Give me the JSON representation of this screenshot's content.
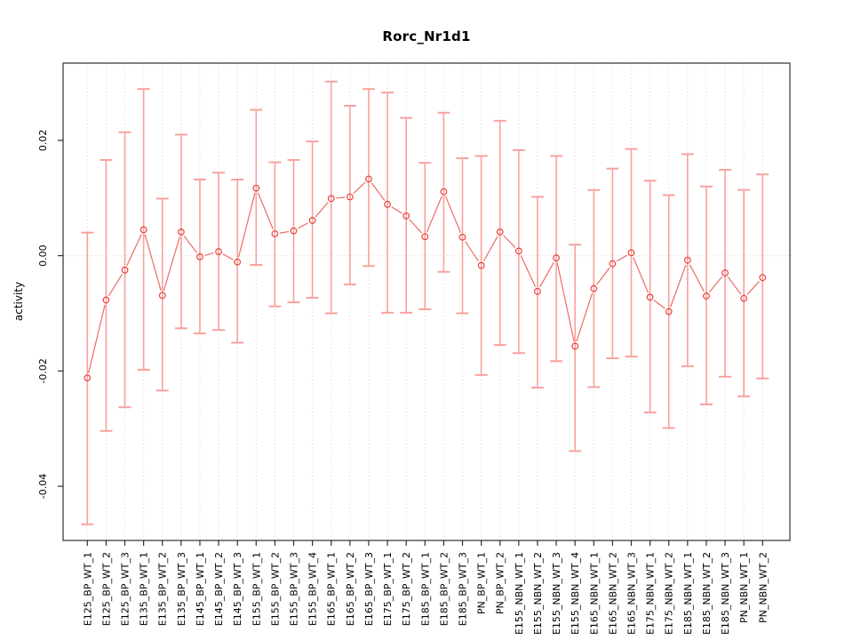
{
  "title": "Rorc_Nr1d1",
  "chart_data": {
    "type": "line",
    "subtype": "points-with-error-bars",
    "title": "Rorc_Nr1d1",
    "xlabel": "",
    "ylabel": "activity",
    "legend": "none",
    "grid": "vertical dotted gridline at every category; dotted horizontal line at y=0",
    "x_tick_label_rotation": -90,
    "y_tick_label_rotation": -90,
    "ylim": [
      -0.0494,
      0.0334
    ],
    "y_tick_labels": [
      "0.02",
      "0.00",
      "-0.02",
      "-0.04"
    ],
    "categories": [
      "E125_BP_WT_1",
      "E125_BP_WT_2",
      "E125_BP_WT_3",
      "E135_BP_WT_1",
      "E135_BP_WT_2",
      "E135_BP_WT_3",
      "E145_BP_WT_1",
      "E145_BP_WT_2",
      "E145_BP_WT_3",
      "E155_BP_WT_1",
      "E155_BP_WT_2",
      "E155_BP_WT_3",
      "E155_BP_WT_4",
      "E165_BP_WT_1",
      "E165_BP_WT_2",
      "E165_BP_WT_3",
      "E175_BP_WT_1",
      "E175_BP_WT_2",
      "E185_BP_WT_1",
      "E185_BP_WT_2",
      "E185_BP_WT_3",
      "PN_BP_WT_1",
      "PN_BP_WT_2",
      "E155_NBN_WT_1",
      "E155_NBN_WT_2",
      "E155_NBN_WT_3",
      "E155_NBN_WT_4",
      "E165_NBN_WT_1",
      "E165_NBN_WT_2",
      "E165_NBN_WT_3",
      "E175_NBN_WT_1",
      "E175_NBN_WT_2",
      "E185_NBN_WT_1",
      "E185_NBN_WT_2",
      "E185_NBN_WT_3",
      "PN_NBN_WT_1",
      "PN_NBN_WT_2"
    ],
    "series": [
      {
        "name": "activity",
        "values": [
          -0.0212,
          -0.0077,
          -0.0025,
          0.0045,
          -0.0069,
          0.0041,
          -0.0002,
          0.0007,
          -0.0011,
          0.0117,
          0.0038,
          0.0043,
          0.0061,
          0.0099,
          0.0102,
          0.0133,
          0.0089,
          0.0069,
          0.0033,
          0.0111,
          0.0032,
          -0.0017,
          0.0041,
          0.0008,
          -0.0062,
          -0.0004,
          -0.0157,
          -0.0057,
          -0.0014,
          0.0005,
          -0.0072,
          -0.0097,
          -0.0008,
          -0.007,
          -0.003,
          -0.0074,
          -0.0038
        ],
        "error_upper": [
          0.004,
          0.0166,
          0.0214,
          0.0289,
          0.0099,
          0.021,
          0.0132,
          0.0144,
          0.0132,
          0.0253,
          0.0162,
          0.0166,
          0.0198,
          0.0302,
          0.026,
          0.0289,
          0.0283,
          0.0239,
          0.0161,
          0.0248,
          0.0169,
          0.0173,
          0.0234,
          0.0183,
          0.0102,
          0.0173,
          0.0019,
          0.0114,
          0.0151,
          0.0185,
          0.013,
          0.0105,
          0.0176,
          0.012,
          0.0149,
          0.0114,
          0.0141
        ],
        "error_lower": [
          -0.0466,
          -0.0304,
          -0.0263,
          -0.0198,
          -0.0234,
          -0.0126,
          -0.0135,
          -0.0129,
          -0.0151,
          -0.0016,
          -0.0088,
          -0.0081,
          -0.0073,
          -0.01,
          -0.005,
          -0.0018,
          -0.0099,
          -0.0099,
          -0.0093,
          -0.0028,
          -0.01,
          -0.0207,
          -0.0155,
          -0.0169,
          -0.0229,
          -0.0183,
          -0.0339,
          -0.0228,
          -0.0178,
          -0.0175,
          -0.0272,
          -0.0299,
          -0.0192,
          -0.0258,
          -0.021,
          -0.0244,
          -0.0213
        ]
      }
    ],
    "colors": {
      "point": "#e9443d",
      "connector_line": "#ee6b65",
      "error_bar": "#f7a29e",
      "gridline": "#d9d9d9",
      "zero_line": "#d9d9d9",
      "box_border": "#2f2f2f",
      "tick": "#2f2f2f",
      "text": "#000000",
      "background": "#ffffff"
    }
  }
}
